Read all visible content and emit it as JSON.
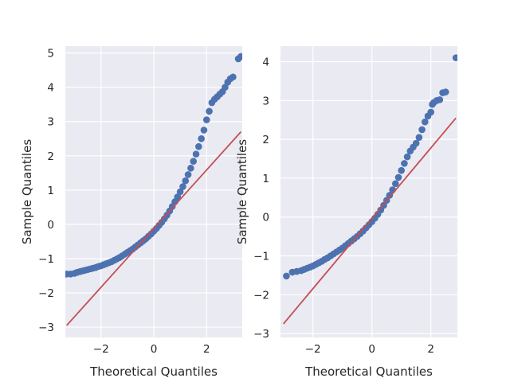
{
  "chart_data": [
    {
      "type": "scatter",
      "title": "",
      "xlabel": "Theoretical Quantiles",
      "ylabel": "Sample Quantiles",
      "xlim": [
        -3.35,
        3.35
      ],
      "ylim": [
        -3.3,
        5.2
      ],
      "xticks": [
        -2,
        0,
        2
      ],
      "xtick_labels": [
        "−2",
        "0",
        "2"
      ],
      "yticks": [
        -3,
        -2,
        -1,
        0,
        1,
        2,
        3,
        4,
        5
      ],
      "ytick_labels": [
        "−3",
        "−2",
        "−1",
        "0",
        "1",
        "2",
        "3",
        "4",
        "5"
      ],
      "grid": true,
      "colors": {
        "points": "#4c72b0",
        "reference_line": "#c44e52",
        "background": "#eaeaf2"
      },
      "reference_line": {
        "x": [
          -3.3,
          3.3
        ],
        "y": [
          -2.95,
          2.7
        ]
      },
      "series": [
        {
          "x": [
            -3.3,
            -3.15,
            -3.0,
            -2.9,
            -2.8,
            -2.7,
            -2.6,
            -2.5,
            -2.4,
            -2.3,
            -2.2,
            -2.1,
            -2.0,
            -1.9,
            -1.8,
            -1.7,
            -1.6,
            -1.5,
            -1.4,
            -1.3,
            -1.2,
            -1.1,
            -1.0,
            -0.9,
            -0.8,
            -0.7,
            -0.6,
            -0.5,
            -0.4,
            -0.3,
            -0.2,
            -0.1,
            0.0,
            0.1,
            0.2,
            0.3,
            0.4,
            0.5,
            0.6,
            0.7,
            0.8,
            0.9,
            1.0,
            1.1,
            1.2,
            1.3,
            1.4,
            1.5,
            1.6,
            1.7,
            1.8,
            1.9,
            2.0,
            2.1,
            2.2,
            2.3,
            2.4,
            2.5,
            2.6,
            2.7,
            2.8,
            2.9,
            3.0,
            3.2,
            3.3
          ],
          "y": [
            -1.45,
            -1.45,
            -1.43,
            -1.4,
            -1.38,
            -1.36,
            -1.34,
            -1.32,
            -1.3,
            -1.28,
            -1.26,
            -1.23,
            -1.21,
            -1.18,
            -1.15,
            -1.12,
            -1.09,
            -1.05,
            -1.01,
            -0.97,
            -0.92,
            -0.87,
            -0.82,
            -0.77,
            -0.72,
            -0.66,
            -0.6,
            -0.54,
            -0.48,
            -0.42,
            -0.35,
            -0.28,
            -0.2,
            -0.12,
            -0.03,
            0.06,
            0.16,
            0.27,
            0.39,
            0.52,
            0.66,
            0.8,
            0.95,
            1.1,
            1.27,
            1.45,
            1.64,
            1.84,
            2.05,
            2.27,
            2.5,
            2.75,
            3.05,
            3.3,
            3.55,
            3.65,
            3.72,
            3.8,
            3.87,
            4.0,
            4.15,
            4.25,
            4.3,
            4.83,
            4.9
          ]
        }
      ]
    },
    {
      "type": "scatter",
      "title": "",
      "xlabel": "Theoretical Quantiles",
      "ylabel": "Sample Quantiles",
      "xlim": [
        -3.1,
        2.9
      ],
      "ylim": [
        -3.1,
        4.4
      ],
      "xticks": [
        -2,
        0,
        2
      ],
      "xtick_labels": [
        "−2",
        "0",
        "2"
      ],
      "yticks": [
        -3,
        -2,
        -1,
        0,
        1,
        2,
        3,
        4
      ],
      "ytick_labels": [
        "−3",
        "−2",
        "−1",
        "0",
        "1",
        "2",
        "3",
        "4"
      ],
      "grid": true,
      "colors": {
        "points": "#4c72b0",
        "reference_line": "#c44e52",
        "background": "#eaeaf2"
      },
      "reference_line": {
        "x": [
          -3.0,
          2.85
        ],
        "y": [
          -2.75,
          2.55
        ]
      },
      "series": [
        {
          "x": [
            -2.9,
            -2.7,
            -2.55,
            -2.4,
            -2.3,
            -2.2,
            -2.1,
            -2.0,
            -1.9,
            -1.8,
            -1.7,
            -1.6,
            -1.5,
            -1.4,
            -1.3,
            -1.2,
            -1.1,
            -1.0,
            -0.9,
            -0.8,
            -0.7,
            -0.6,
            -0.5,
            -0.4,
            -0.3,
            -0.2,
            -0.1,
            0.0,
            0.1,
            0.2,
            0.3,
            0.4,
            0.5,
            0.6,
            0.7,
            0.8,
            0.9,
            1.0,
            1.1,
            1.2,
            1.3,
            1.4,
            1.5,
            1.6,
            1.7,
            1.8,
            1.9,
            2.0,
            2.05,
            2.1,
            2.2,
            2.3,
            2.4,
            2.5,
            2.85
          ],
          "y": [
            -1.52,
            -1.42,
            -1.4,
            -1.38,
            -1.35,
            -1.32,
            -1.29,
            -1.26,
            -1.22,
            -1.18,
            -1.14,
            -1.09,
            -1.05,
            -1.0,
            -0.95,
            -0.9,
            -0.85,
            -0.8,
            -0.74,
            -0.68,
            -0.62,
            -0.56,
            -0.5,
            -0.43,
            -0.36,
            -0.28,
            -0.2,
            -0.12,
            -0.03,
            0.07,
            0.18,
            0.3,
            0.43,
            0.56,
            0.7,
            0.86,
            1.02,
            1.2,
            1.38,
            1.55,
            1.7,
            1.8,
            1.9,
            2.05,
            2.25,
            2.45,
            2.6,
            2.7,
            2.9,
            2.95,
            3.0,
            3.02,
            3.2,
            3.22,
            4.1
          ]
        }
      ]
    }
  ]
}
